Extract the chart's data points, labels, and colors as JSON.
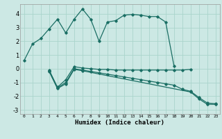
{
  "xlabel": "Humidex (Indice chaleur)",
  "bg_color": "#cce8e4",
  "grid_color": "#aad4cc",
  "line_color": "#1a6e64",
  "xlim": [
    -0.5,
    23.5
  ],
  "ylim": [
    -3.3,
    4.7
  ],
  "xticks": [
    0,
    1,
    2,
    3,
    4,
    5,
    6,
    7,
    8,
    9,
    10,
    11,
    12,
    13,
    14,
    15,
    16,
    17,
    18,
    19,
    20,
    21,
    22,
    23
  ],
  "yticks": [
    -3,
    -2,
    -1,
    0,
    1,
    2,
    3,
    4
  ],
  "series": [
    {
      "x": [
        0,
        1,
        2,
        3,
        4,
        5,
        6,
        7,
        8,
        9,
        10,
        11,
        12,
        13,
        14,
        15,
        16,
        17,
        18
      ],
      "y": [
        0.6,
        1.8,
        2.2,
        2.9,
        3.6,
        2.6,
        3.6,
        4.35,
        3.6,
        2.0,
        3.4,
        3.5,
        3.9,
        3.95,
        3.9,
        3.8,
        3.8,
        3.4,
        0.2
      ]
    },
    {
      "x": [
        3,
        4,
        5,
        6,
        7,
        8,
        9,
        10,
        11,
        12,
        13,
        14,
        15,
        16,
        17,
        18,
        19,
        20
      ],
      "y": [
        -0.1,
        -1.35,
        -0.8,
        0.15,
        0.05,
        0.0,
        -0.05,
        -0.05,
        -0.1,
        -0.1,
        -0.1,
        -0.1,
        -0.1,
        -0.1,
        -0.1,
        -0.1,
        -0.1,
        -0.05
      ]
    },
    {
      "x": [
        3,
        4,
        5,
        6,
        7,
        8,
        9,
        10,
        11,
        12,
        13,
        14,
        15,
        16,
        17,
        18,
        19,
        20,
        21,
        22,
        23
      ],
      "y": [
        -0.15,
        -1.4,
        -1.0,
        0.0,
        -0.1,
        -0.2,
        -0.3,
        -0.4,
        -0.5,
        -0.6,
        -0.7,
        -0.8,
        -0.9,
        -1.0,
        -1.1,
        -1.2,
        -1.5,
        -1.65,
        -2.1,
        -2.5,
        -2.55
      ]
    },
    {
      "x": [
        3,
        4,
        5,
        6,
        7,
        20,
        21,
        22,
        23
      ],
      "y": [
        -0.2,
        -1.45,
        -1.1,
        -0.05,
        -0.15,
        -1.7,
        -2.2,
        -2.6,
        -2.6
      ]
    }
  ]
}
